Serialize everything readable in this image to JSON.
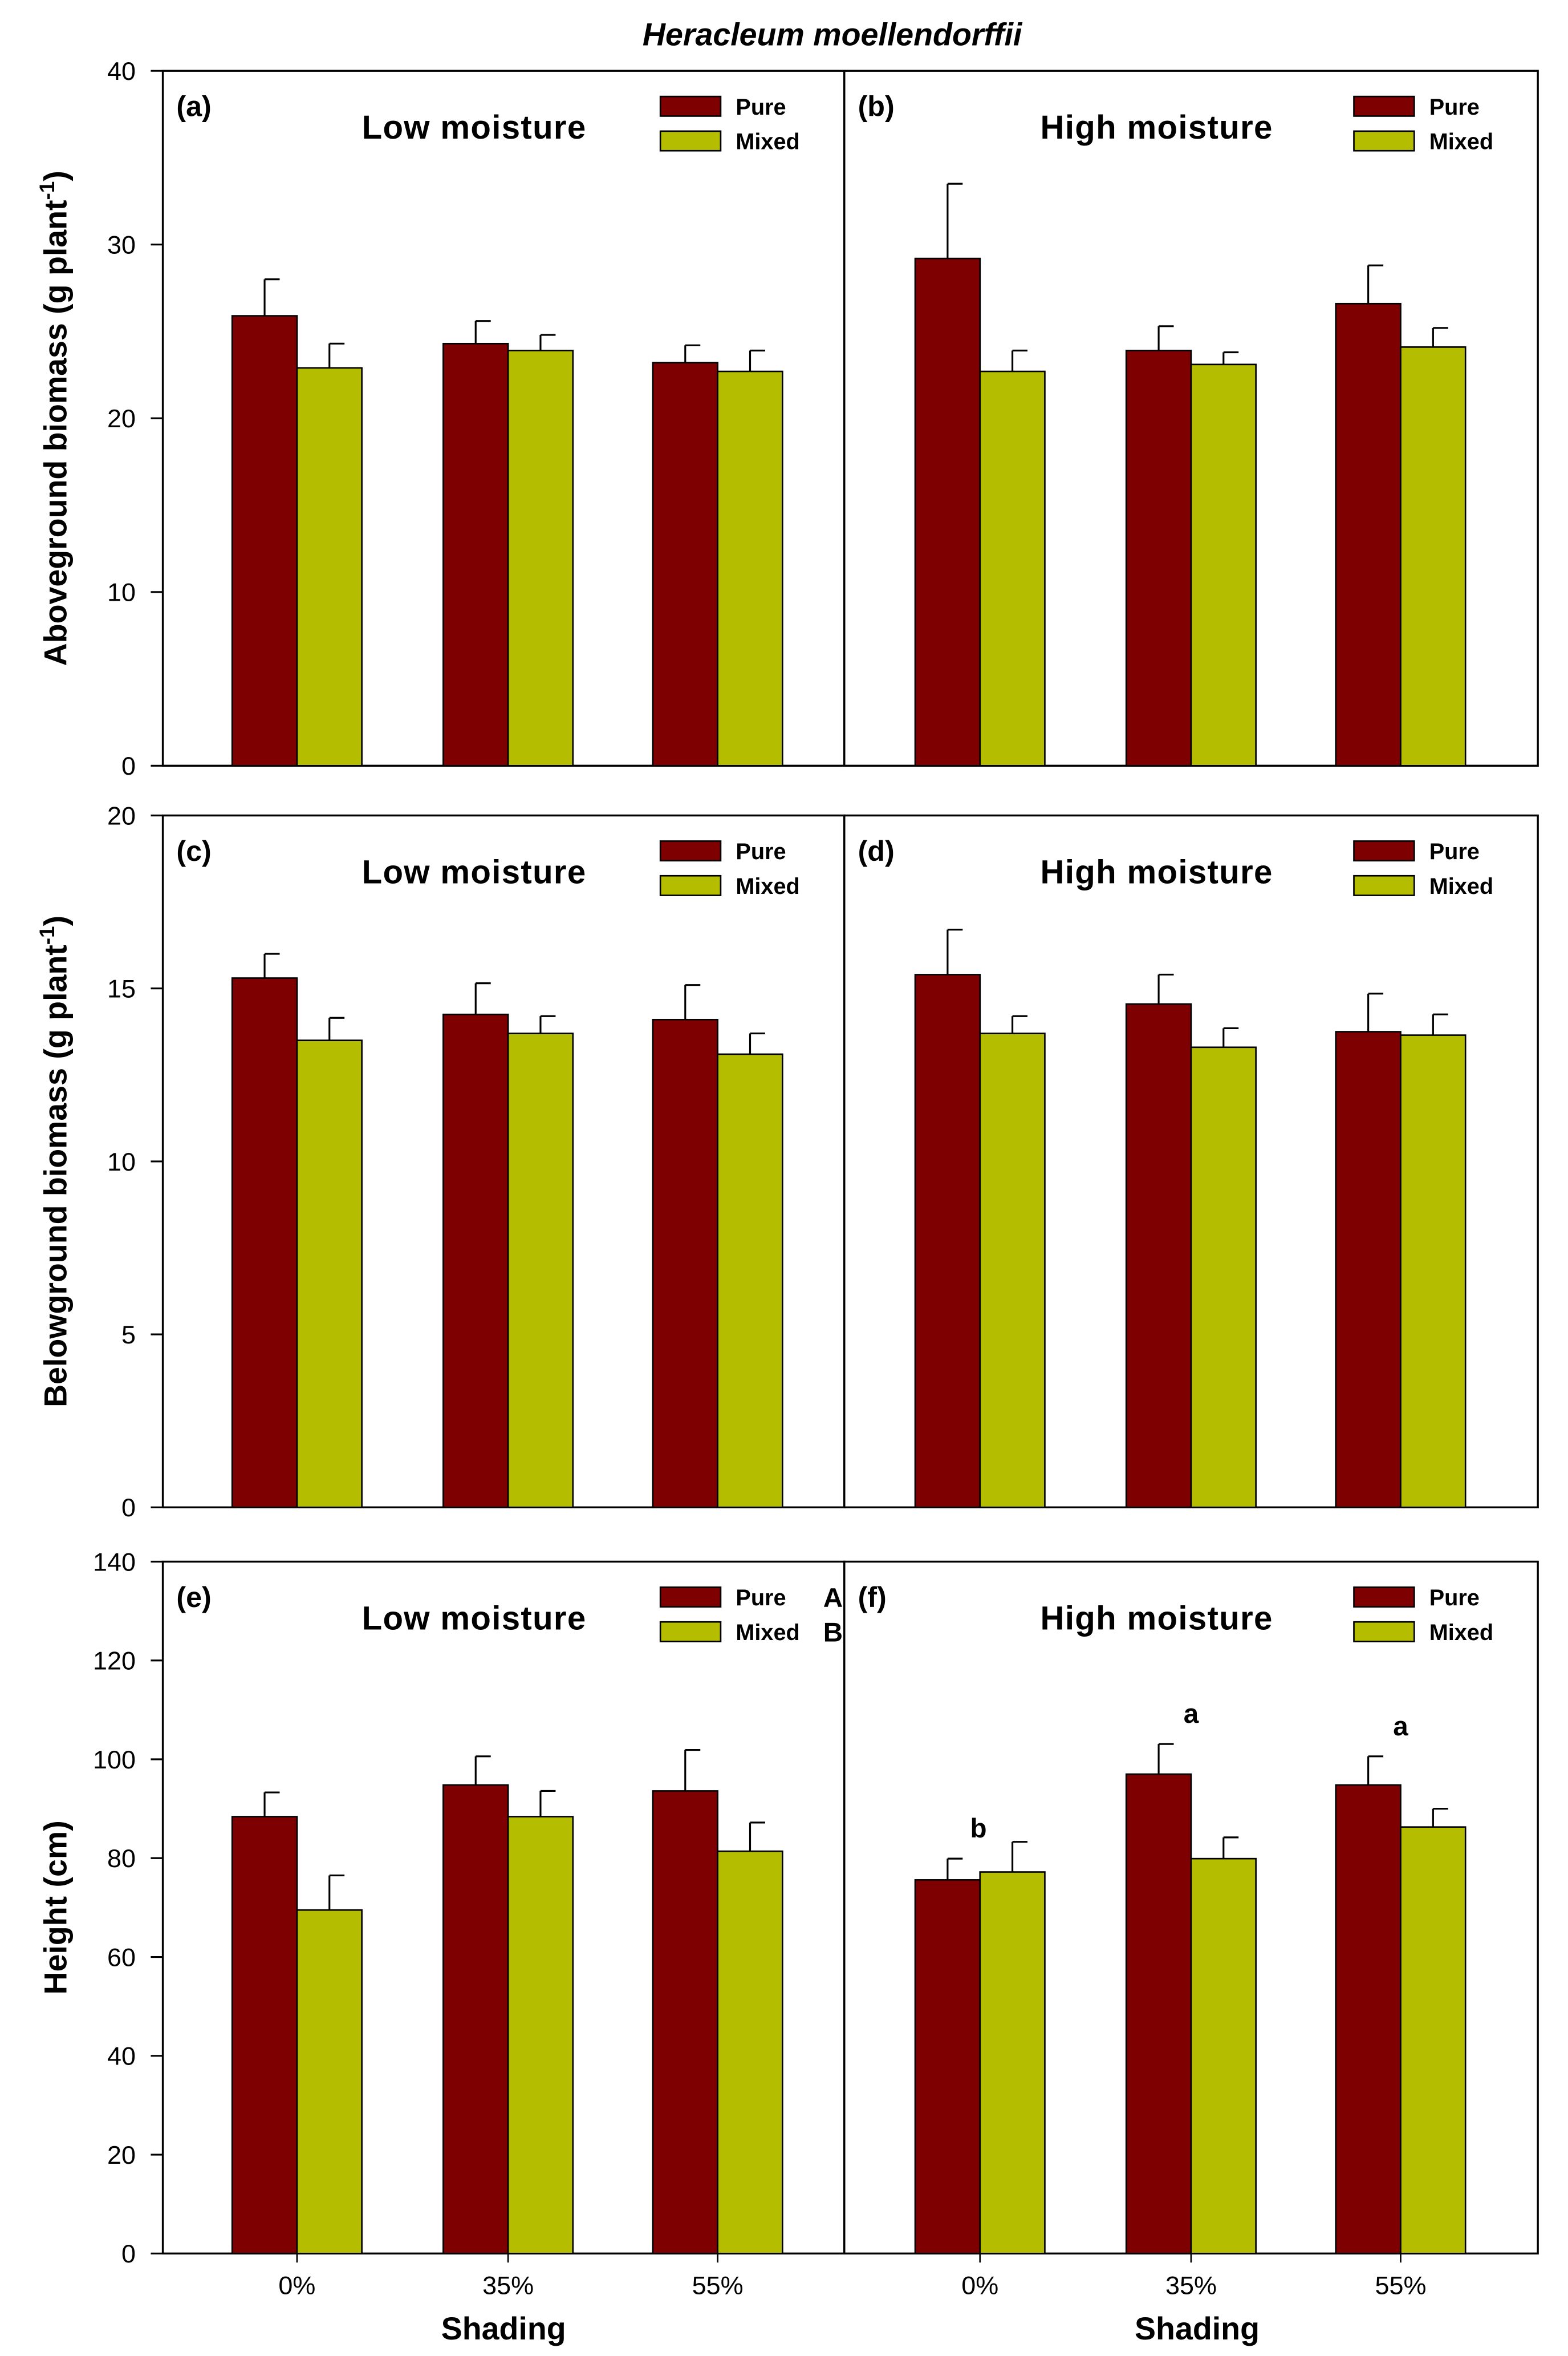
{
  "colors": {
    "pure": "#7f0000",
    "mixed": "#b5bd00"
  },
  "chart_data": {
    "type": "bar",
    "title": "Heracleum moellendorffii",
    "xlabel": "Shading",
    "categories": [
      "0%",
      "35%",
      "55%"
    ],
    "legend": [
      "Pure",
      "Mixed"
    ],
    "rows": [
      {
        "ylabel": "Aboveground biomass (g plant",
        "ylabel_sup": "-1",
        "ylabel_end": ")",
        "ylim": [
          0,
          40
        ],
        "yticks": [
          "0",
          "10",
          "20",
          "30",
          "40"
        ]
      },
      {
        "ylabel": "Belowground biomass (g plant",
        "ylabel_sup": "-1",
        "ylabel_end": ")",
        "ylim": [
          0,
          20
        ],
        "yticks": [
          "0",
          "5",
          "10",
          "15",
          "20"
        ]
      },
      {
        "ylabel": "Height (cm)",
        "ylabel_sup": "",
        "ylabel_end": "",
        "ylim": [
          0,
          140
        ],
        "yticks": [
          "0",
          "20",
          "40",
          "60",
          "80",
          "100",
          "120",
          "140"
        ]
      }
    ],
    "panels": [
      {
        "label": "(a)",
        "subtitle": "Low moisture",
        "row": 0,
        "col": 0,
        "series": [
          {
            "name": "Pure",
            "values": [
              25.9,
              24.3,
              23.2
            ],
            "errors": [
              2.1,
              1.3,
              1.0
            ]
          },
          {
            "name": "Mixed",
            "values": [
              22.9,
              23.9,
              22.7
            ],
            "errors": [
              1.4,
              0.9,
              1.2
            ]
          }
        ],
        "legend_letters": [
          "",
          ""
        ],
        "annotations": []
      },
      {
        "label": "(b)",
        "subtitle": "High moisture",
        "row": 0,
        "col": 1,
        "series": [
          {
            "name": "Pure",
            "values": [
              29.2,
              23.9,
              26.6
            ],
            "errors": [
              4.3,
              1.4,
              2.2
            ]
          },
          {
            "name": "Mixed",
            "values": [
              22.7,
              23.1,
              24.1
            ],
            "errors": [
              1.2,
              0.7,
              1.1
            ]
          }
        ],
        "legend_letters": [
          "",
          ""
        ],
        "annotations": []
      },
      {
        "label": "(c)",
        "subtitle": "Low moisture",
        "row": 1,
        "col": 0,
        "series": [
          {
            "name": "Pure",
            "values": [
              15.3,
              14.25,
              14.1
            ],
            "errors": [
              0.7,
              0.9,
              1.0
            ]
          },
          {
            "name": "Mixed",
            "values": [
              13.5,
              13.7,
              13.1
            ],
            "errors": [
              0.65,
              0.5,
              0.6
            ]
          }
        ],
        "legend_letters": [
          "",
          ""
        ],
        "annotations": []
      },
      {
        "label": "(d)",
        "subtitle": "High moisture",
        "row": 1,
        "col": 1,
        "series": [
          {
            "name": "Pure",
            "values": [
              15.4,
              14.55,
              13.75
            ],
            "errors": [
              1.3,
              0.85,
              1.1
            ]
          },
          {
            "name": "Mixed",
            "values": [
              13.7,
              13.3,
              13.65
            ],
            "errors": [
              0.5,
              0.55,
              0.6
            ]
          }
        ],
        "legend_letters": [
          "",
          ""
        ],
        "annotations": []
      },
      {
        "label": "(e)",
        "subtitle": "Low moisture",
        "row": 2,
        "col": 0,
        "series": [
          {
            "name": "Pure",
            "values": [
              88.4,
              94.8,
              93.6
            ],
            "errors": [
              4.9,
              5.8,
              8.3
            ]
          },
          {
            "name": "Mixed",
            "values": [
              69.5,
              88.4,
              81.4
            ],
            "errors": [
              7.0,
              5.2,
              5.8
            ]
          }
        ],
        "legend_letters": [
          "A",
          "B"
        ],
        "annotations": []
      },
      {
        "label": "(f)",
        "subtitle": "High moisture",
        "row": 2,
        "col": 1,
        "series": [
          {
            "name": "Pure",
            "values": [
              75.6,
              97.0,
              94.8
            ],
            "errors": [
              4.3,
              6.1,
              5.8
            ]
          },
          {
            "name": "Mixed",
            "values": [
              77.2,
              79.9,
              86.3
            ],
            "errors": [
              6.1,
              4.3,
              3.7
            ]
          }
        ],
        "legend_letters": [
          "",
          ""
        ],
        "annotations": [
          "b",
          "a",
          "a"
        ]
      }
    ]
  }
}
